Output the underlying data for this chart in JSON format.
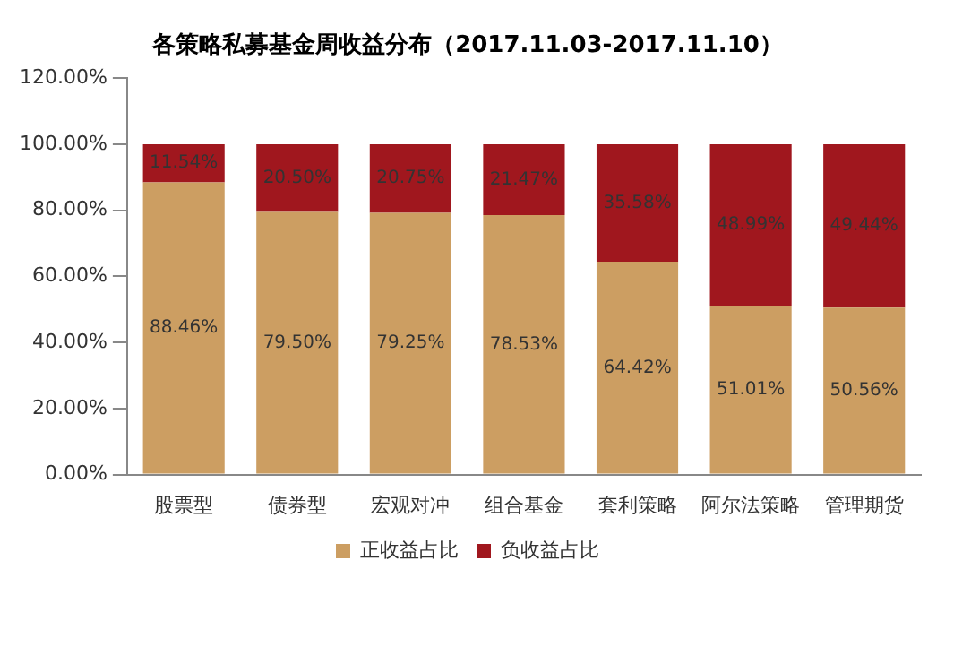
{
  "chart_data": {
    "type": "bar",
    "title": "各策略私募基金周收益分布（2017.11.03-2017.11.10）",
    "stacked": true,
    "categories": [
      "股票型",
      "债券型",
      "宏观对冲",
      "组合基金",
      "套利策略",
      "阿尔法策略",
      "管理期货"
    ],
    "series": [
      {
        "name": "正收益占比",
        "color": "#cc9e62",
        "values": [
          88.46,
          79.5,
          79.25,
          78.53,
          64.42,
          51.01,
          50.56
        ],
        "value_labels": [
          "88.46%",
          "79.50%",
          "79.25%",
          "78.53%",
          "64.42%",
          "51.01%",
          "50.56%"
        ]
      },
      {
        "name": "负收益占比",
        "color": "#a0171e",
        "values": [
          11.54,
          20.5,
          20.75,
          21.47,
          35.58,
          48.99,
          49.44
        ],
        "value_labels": [
          "11.54%",
          "20.50%",
          "20.75%",
          "21.47%",
          "35.58%",
          "48.99%",
          "49.44%"
        ]
      }
    ],
    "ylim": [
      0,
      120
    ],
    "yticks": [
      {
        "value": 0,
        "label": "0.00%"
      },
      {
        "value": 20,
        "label": "20.00%"
      },
      {
        "value": 40,
        "label": "40.00%"
      },
      {
        "value": 60,
        "label": "60.00%"
      },
      {
        "value": 80,
        "label": "80.00%"
      },
      {
        "value": 100,
        "label": "100.00%"
      },
      {
        "value": 120,
        "label": "120.00%"
      }
    ],
    "grid": false,
    "legend": "bottom"
  }
}
